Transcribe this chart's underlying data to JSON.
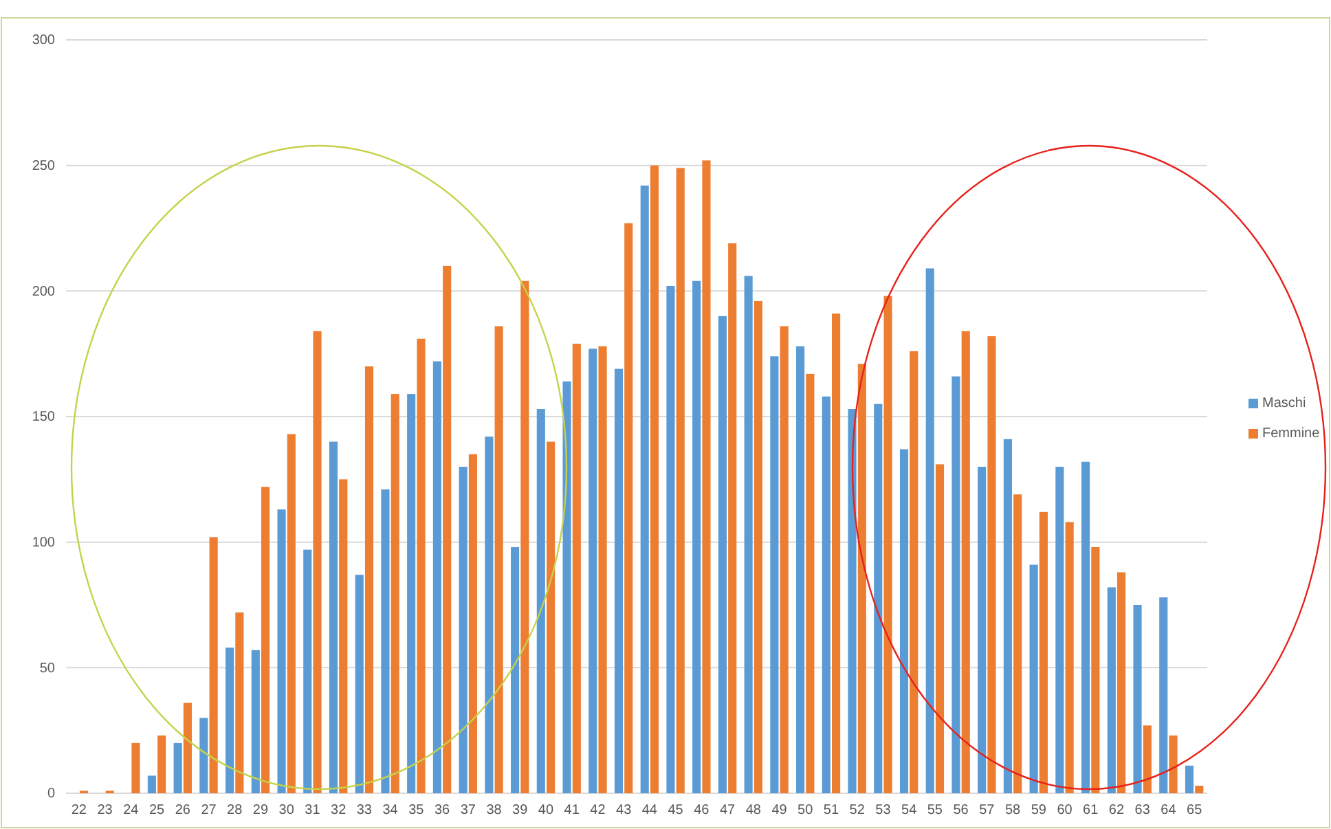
{
  "chart_data": {
    "type": "bar",
    "categories": [
      "22",
      "23",
      "24",
      "25",
      "26",
      "27",
      "28",
      "29",
      "30",
      "31",
      "32",
      "33",
      "34",
      "35",
      "36",
      "37",
      "38",
      "39",
      "40",
      "41",
      "42",
      "43",
      "44",
      "45",
      "46",
      "47",
      "48",
      "49",
      "50",
      "51",
      "52",
      "53",
      "54",
      "55",
      "56",
      "57",
      "58",
      "59",
      "60",
      "61",
      "62",
      "63",
      "64",
      "65"
    ],
    "series": [
      {
        "name": "Maschi",
        "color": "#5b9bd5",
        "values": [
          0,
          0,
          0,
          7,
          20,
          30,
          58,
          57,
          113,
          97,
          140,
          87,
          121,
          159,
          172,
          130,
          142,
          98,
          153,
          164,
          177,
          169,
          242,
          202,
          204,
          190,
          206,
          174,
          178,
          158,
          153,
          155,
          137,
          209,
          166,
          130,
          141,
          91,
          130,
          132,
          82,
          75,
          78,
          11
        ]
      },
      {
        "name": "Femmine",
        "color": "#ed7d31",
        "values": [
          1,
          1,
          20,
          23,
          36,
          102,
          72,
          122,
          143,
          184,
          125,
          170,
          159,
          181,
          210,
          135,
          186,
          204,
          140,
          179,
          178,
          227,
          250,
          249,
          252,
          219,
          196,
          186,
          167,
          191,
          171,
          198,
          176,
          131,
          184,
          182,
          119,
          112,
          108,
          98,
          88,
          27,
          23,
          3
        ]
      }
    ],
    "ylim": [
      0,
      300
    ],
    "yticks": [
      0,
      50,
      100,
      150,
      200,
      250,
      300
    ],
    "grid": "y",
    "legend": "right"
  }
}
